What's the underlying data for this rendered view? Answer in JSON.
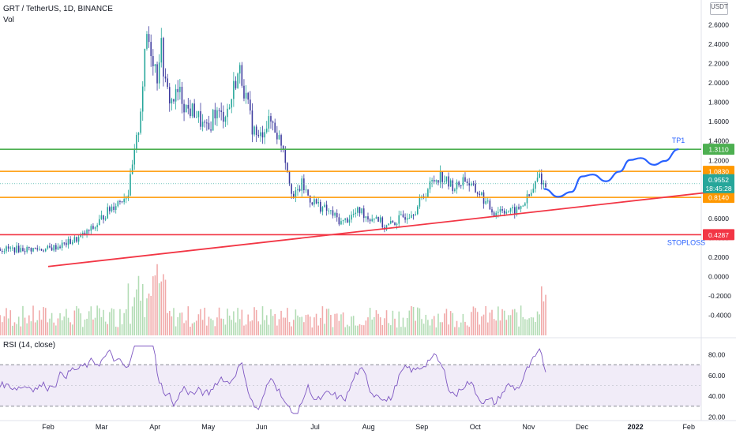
{
  "header": {
    "title": "GRT / TetherUS, 1D, BINANCE",
    "volume_label": "Vol",
    "rsi_label": "RSI (14, close)",
    "unit": "USDT"
  },
  "chart_data": {
    "type": "candlestick",
    "title": "GRT / TetherUS, 1D, BINANCE",
    "x_tick_labels": [
      "Feb",
      "Mar",
      "Apr",
      "May",
      "Jun",
      "Jul",
      "Aug",
      "Sep",
      "Oct",
      "Nov",
      "Dec",
      "2022",
      "Feb"
    ],
    "y_tick_labels": [
      "2.6000",
      "2.4000",
      "2.2000",
      "2.0000",
      "1.8000",
      "1.6000",
      "1.4000",
      "1.2000",
      "1.0000",
      "0.8000",
      "0.6000",
      "0.4000",
      "0.2000",
      "0.0000",
      "-0.2000",
      "-0.4000"
    ],
    "ylim": [
      -0.42,
      2.65
    ],
    "grid": false,
    "price_path": [
      [
        0.0,
        0.28
      ],
      [
        0.3,
        0.33
      ],
      [
        0.6,
        0.4
      ],
      [
        0.9,
        0.52
      ],
      [
        1.0,
        0.6
      ],
      [
        1.2,
        0.72
      ],
      [
        1.5,
        0.86
      ],
      [
        1.6,
        1.2
      ],
      [
        1.7,
        1.55
      ],
      [
        1.78,
        2.05
      ],
      [
        1.85,
        2.5
      ],
      [
        1.95,
        2.3
      ],
      [
        2.05,
        2.05
      ],
      [
        2.1,
        2.45
      ],
      [
        2.2,
        1.95
      ],
      [
        2.3,
        1.8
      ],
      [
        2.45,
        1.9
      ],
      [
        2.6,
        1.72
      ],
      [
        2.75,
        1.7
      ],
      [
        2.9,
        1.55
      ],
      [
        3.0,
        1.48
      ],
      [
        3.1,
        1.7
      ],
      [
        3.25,
        1.65
      ],
      [
        3.4,
        1.75
      ],
      [
        3.5,
        2.02
      ],
      [
        3.6,
        2.12
      ],
      [
        3.7,
        1.85
      ],
      [
        3.82,
        1.55
      ],
      [
        3.95,
        1.4
      ],
      [
        4.05,
        1.55
      ],
      [
        4.2,
        1.6
      ],
      [
        4.3,
        1.45
      ],
      [
        4.4,
        1.35
      ],
      [
        4.5,
        1.05
      ],
      [
        4.6,
        0.8
      ],
      [
        4.75,
        0.95
      ],
      [
        4.9,
        0.8
      ],
      [
        5.1,
        0.72
      ],
      [
        5.3,
        0.65
      ],
      [
        5.5,
        0.55
      ],
      [
        5.7,
        0.63
      ],
      [
        5.85,
        0.68
      ],
      [
        6.0,
        0.6
      ],
      [
        6.15,
        0.62
      ],
      [
        6.3,
        0.5
      ],
      [
        6.5,
        0.56
      ],
      [
        6.7,
        0.63
      ],
      [
        6.9,
        0.7
      ],
      [
        7.05,
        0.85
      ],
      [
        7.2,
        0.98
      ],
      [
        7.35,
        1.05
      ],
      [
        7.5,
        0.95
      ],
      [
        7.65,
        0.92
      ],
      [
        7.8,
        1.02
      ],
      [
        7.95,
        0.9
      ],
      [
        8.1,
        0.85
      ],
      [
        8.2,
        0.75
      ],
      [
        8.35,
        0.66
      ],
      [
        8.5,
        0.7
      ],
      [
        8.65,
        0.66
      ],
      [
        8.8,
        0.68
      ],
      [
        8.9,
        0.75
      ],
      [
        9.05,
        0.85
      ],
      [
        9.2,
        1.05
      ],
      [
        9.28,
        0.95
      ],
      [
        9.32,
        0.93
      ]
    ],
    "volume_label": "Vol",
    "rsi": {
      "label": "RSI (14, close)",
      "y_tick_labels": [
        "80.00",
        "60.00",
        "40.00",
        "20.00"
      ],
      "ylim": [
        18,
        92
      ],
      "upper_band": 70,
      "lower_band": 30,
      "midline": 50
    },
    "horizontal_levels": [
      {
        "value": 1.311,
        "label": "1.3110",
        "color": "#4caf50",
        "annotation": "TP1"
      },
      {
        "value": 1.083,
        "label": "1.0830",
        "color": "#ff9800",
        "annotation": ""
      },
      {
        "value": 0.814,
        "label": "0.8140",
        "color": "#ff9800",
        "annotation": ""
      },
      {
        "value": 0.4287,
        "label": "0.4287",
        "color": "#f23645",
        "annotation": "STOPLOSS"
      }
    ],
    "trendline": {
      "from": [
        0.0,
        0.1
      ],
      "to": [
        12.6,
        0.88
      ],
      "color": "#f23645"
    },
    "projection_path": [
      [
        9.3,
        0.9
      ],
      [
        9.55,
        0.82
      ],
      [
        9.8,
        0.87
      ],
      [
        10.0,
        1.03
      ],
      [
        10.2,
        1.05
      ],
      [
        10.45,
        0.98
      ],
      [
        10.7,
        1.08
      ],
      [
        10.9,
        1.2
      ],
      [
        11.1,
        1.22
      ],
      [
        11.35,
        1.15
      ],
      [
        11.55,
        1.19
      ],
      [
        11.8,
        1.31
      ]
    ],
    "last_price": {
      "value": 0.9552,
      "label": "0.9552",
      "countdown": "18:45:28",
      "color": "#26a69a"
    },
    "colors": {
      "up": "#26a69a",
      "down": "#3d3a9e",
      "rsi_line": "#7e57c2",
      "rsi_band": "#ede7f6",
      "projection": "#2962ff"
    }
  }
}
